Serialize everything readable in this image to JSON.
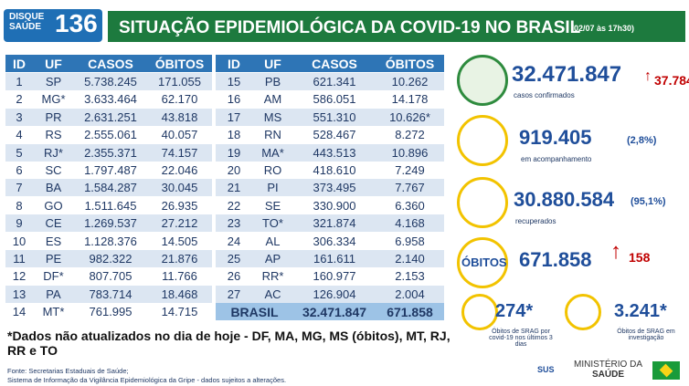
{
  "header": {
    "logo": {
      "line1": "DISQUE",
      "line2": "SAÚDE",
      "number": "136"
    },
    "title": "SITUAÇÃO EPIDEMIOLÓGICA DA COVID-19 NO BRASIL",
    "date": "(02/07 às 17h30)"
  },
  "tables": [
    {
      "columns": [
        "ID",
        "UF",
        "CASOS",
        "ÓBITOS"
      ],
      "rows": [
        [
          "1",
          "SP",
          "5.738.245",
          "171.055"
        ],
        [
          "2",
          "MG*",
          "3.633.464",
          "62.170"
        ],
        [
          "3",
          "PR",
          "2.631.251",
          "43.818"
        ],
        [
          "4",
          "RS",
          "2.555.061",
          "40.057"
        ],
        [
          "5",
          "RJ*",
          "2.355.371",
          "74.157"
        ],
        [
          "6",
          "SC",
          "1.797.487",
          "22.046"
        ],
        [
          "7",
          "BA",
          "1.584.287",
          "30.045"
        ],
        [
          "8",
          "GO",
          "1.511.645",
          "26.935"
        ],
        [
          "9",
          "CE",
          "1.269.537",
          "27.212"
        ],
        [
          "10",
          "ES",
          "1.128.376",
          "14.505"
        ],
        [
          "11",
          "PE",
          "982.322",
          "21.876"
        ],
        [
          "12",
          "DF*",
          "807.705",
          "11.766"
        ],
        [
          "13",
          "PA",
          "783.714",
          "18.468"
        ],
        [
          "14",
          "MT*",
          "761.995",
          "14.715"
        ]
      ]
    },
    {
      "columns": [
        "ID",
        "UF",
        "CASOS",
        "ÓBITOS"
      ],
      "rows": [
        [
          "15",
          "PB",
          "621.341",
          "10.262"
        ],
        [
          "16",
          "AM",
          "586.051",
          "14.178"
        ],
        [
          "17",
          "MS",
          "551.310",
          "10.626*"
        ],
        [
          "18",
          "RN",
          "528.467",
          "8.272"
        ],
        [
          "19",
          "MA*",
          "443.513",
          "10.896"
        ],
        [
          "20",
          "RO",
          "418.610",
          "7.249"
        ],
        [
          "21",
          "PI",
          "373.495",
          "7.767"
        ],
        [
          "22",
          "SE",
          "330.900",
          "6.360"
        ],
        [
          "23",
          "TO*",
          "321.874",
          "4.168"
        ],
        [
          "24",
          "AL",
          "306.334",
          "6.958"
        ],
        [
          "25",
          "AP",
          "161.611",
          "2.140"
        ],
        [
          "26",
          "RR*",
          "160.977",
          "2.153"
        ],
        [
          "27",
          "AC",
          "126.904",
          "2.004"
        ]
      ],
      "total": [
        "BRASIL",
        "32.471.847",
        "671.858"
      ]
    }
  ],
  "stats": {
    "cases": {
      "value": "32.471.847",
      "change": "37.784",
      "label": "casos confirmados"
    },
    "monitoring": {
      "value": "919.405",
      "percent": "(2,8%)",
      "label": "em acompanhamento"
    },
    "recovered": {
      "value": "30.880.584",
      "percent": "(95,1%)",
      "label": "recuperados"
    },
    "deaths": {
      "label": "ÓBITOS",
      "value": "671.858",
      "change": "158"
    },
    "srag_covid": {
      "value": "274*",
      "label": "Óbitos de SRAG por covid-19 nos últimos 3 dias"
    },
    "srag_investigation": {
      "value": "3.241*",
      "label": "Óbitos de SRAG em investigação"
    }
  },
  "footnote": "*Dados não atualizados no dia de hoje - DF, MA, MG, MS (óbitos), MT, RJ, RR e TO",
  "sources": [
    "Fonte: Secretarias Estaduais de Saúde;",
    "Sistema de Informação da Vigilância Epidemiológica da Gripe - dados sujeitos a alterações."
  ],
  "footer_logos": {
    "sus": "SUS",
    "ministry_line1": "MINISTÉRIO DA",
    "ministry_line2": "SAÚDE"
  }
}
